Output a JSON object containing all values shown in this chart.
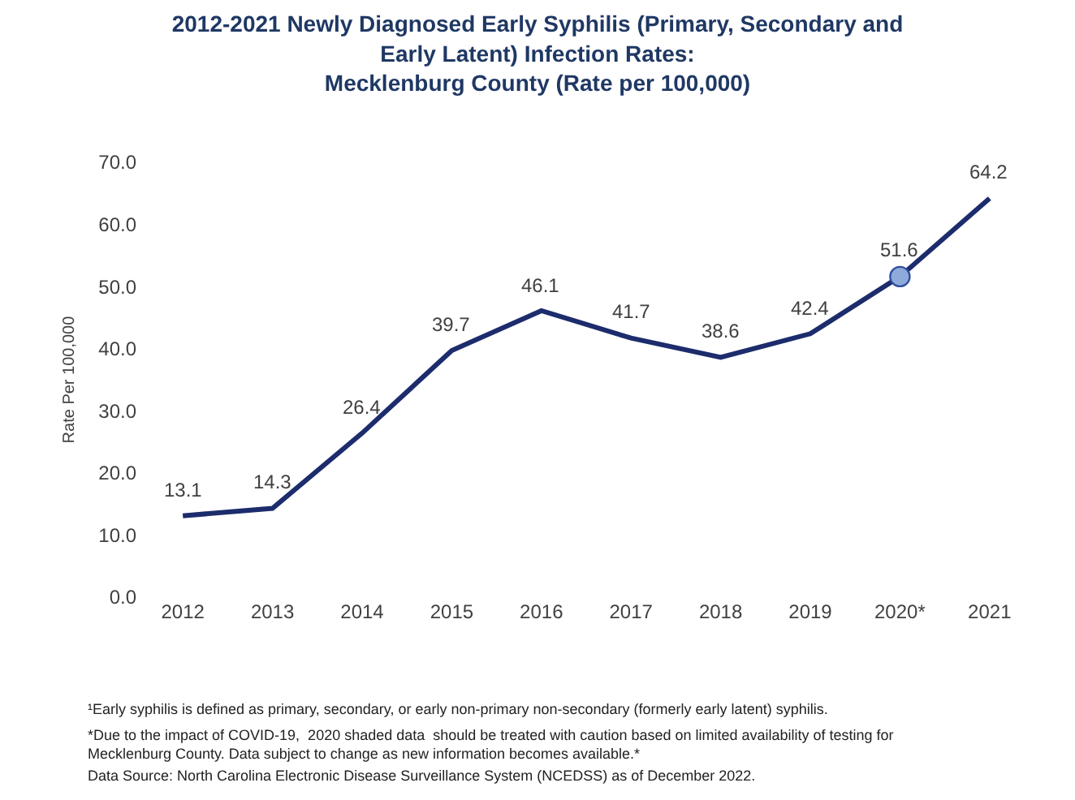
{
  "chart_data": {
    "type": "line",
    "title": "2012-2021 Newly Diagnosed Early Syphilis (Primary, Secondary and\nEarly Latent) Infection Rates:\nMecklenburg County (Rate per 100,000)",
    "ylabel": "Rate Per 100,000",
    "categories": [
      "2012",
      "2013",
      "2014",
      "2015",
      "2016",
      "2017",
      "2018",
      "2019",
      "2020*",
      "2021"
    ],
    "series": [
      {
        "color": "#1c2c6c",
        "values": [
          13.1,
          14.3,
          26.4,
          39.7,
          46.1,
          41.7,
          38.6,
          42.4,
          51.6,
          64.2
        ],
        "value_labels": [
          "13.1",
          "14.3",
          "26.4",
          "39.7",
          "46.1",
          "41.7",
          "38.6",
          "42.4",
          "51.6",
          "64.2"
        ]
      },
      {
        "type": "scatter",
        "marker": "circle",
        "color": "#8eaadb",
        "x": [
          "2020*"
        ],
        "values": [
          51.6
        ],
        "value_labels": [
          null
        ]
      }
    ],
    "marker": "none",
    "line_style": "solid",
    "ylim": [
      0,
      70
    ],
    "yticks": [
      {
        "value": 0,
        "label": "0.0"
      },
      {
        "value": 10,
        "label": "10.0"
      },
      {
        "value": 20,
        "label": "20.0"
      },
      {
        "value": 30,
        "label": "30.0"
      },
      {
        "value": 40,
        "label": "40.0"
      },
      {
        "value": 50,
        "label": "50.0"
      },
      {
        "value": 60,
        "label": "60.0"
      },
      {
        "value": 70,
        "label": "70.0"
      }
    ],
    "annotations": [
      "¹Early syphilis is defined as primary, secondary, or early non-primary non-secondary (formerly early latent) syphilis.",
      "*Due to the impact of COVID-19,  2020 shaded data  should be treated with caution based on limited availability of testing for\nMecklenburg County. Data subject to change as new information becomes available.*",
      "Data Source: North Carolina Electronic Disease Surveillance System (NCEDSS) as of December 2022."
    ]
  }
}
